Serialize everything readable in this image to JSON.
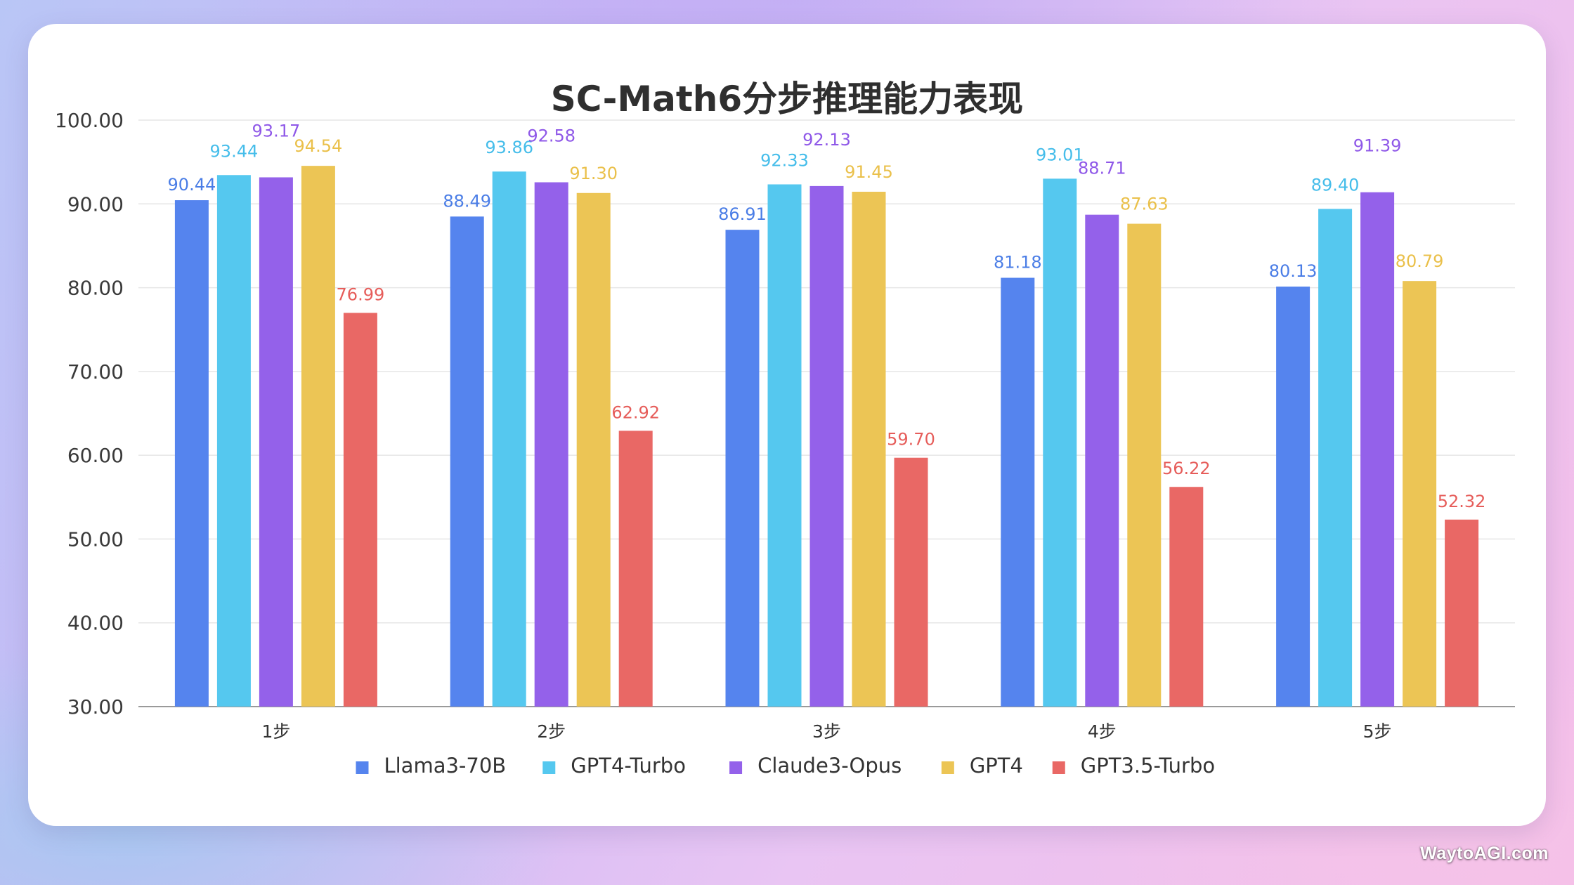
{
  "watermark": "WaytoAGI.com",
  "chart_data": {
    "type": "bar",
    "title": "SC-Math6分步推理能力表现",
    "xlabel": "",
    "ylabel": "",
    "ylim": [
      30,
      100
    ],
    "yticks": [
      "30.00",
      "40.00",
      "50.00",
      "60.00",
      "70.00",
      "80.00",
      "90.00",
      "100.00"
    ],
    "grid": true,
    "legend_position": "bottom",
    "categories": [
      "1步",
      "2步",
      "3步",
      "4步",
      "5步"
    ],
    "series": [
      {
        "name": "Llama3-70B",
        "color": "#5584ee",
        "label_color": "#4a7de6",
        "values": [
          90.44,
          88.49,
          86.91,
          81.18,
          80.13
        ],
        "labels": [
          "90.44",
          "88.49",
          "86.91",
          "81.18",
          "80.13"
        ]
      },
      {
        "name": "GPT4-Turbo",
        "color": "#55c8ef",
        "label_color": "#45bdea",
        "values": [
          93.44,
          93.86,
          92.33,
          93.01,
          89.4
        ],
        "labels": [
          "93.44",
          "93.86",
          "92.33",
          "93.01",
          "89.40"
        ]
      },
      {
        "name": "Claude3-Opus",
        "color": "#9461ea",
        "label_color": "#8f58e8",
        "values": [
          93.17,
          92.58,
          92.13,
          88.71,
          91.39
        ],
        "labels": [
          "93.17",
          "92.58",
          "92.13",
          "88.71",
          "91.39"
        ]
      },
      {
        "name": "GPT4",
        "color": "#ecc555",
        "label_color": "#eac04a",
        "values": [
          94.54,
          91.3,
          91.45,
          87.63,
          80.79
        ],
        "labels": [
          "94.54",
          "91.30",
          "91.45",
          "87.63",
          "80.79"
        ]
      },
      {
        "name": "GPT3.5-Turbo",
        "color": "#e96865",
        "label_color": "#e65d5a",
        "values": [
          76.99,
          62.92,
          59.7,
          56.22,
          52.32
        ],
        "labels": [
          "76.99",
          "62.92",
          "59.70",
          "56.22",
          "52.32"
        ]
      }
    ]
  }
}
